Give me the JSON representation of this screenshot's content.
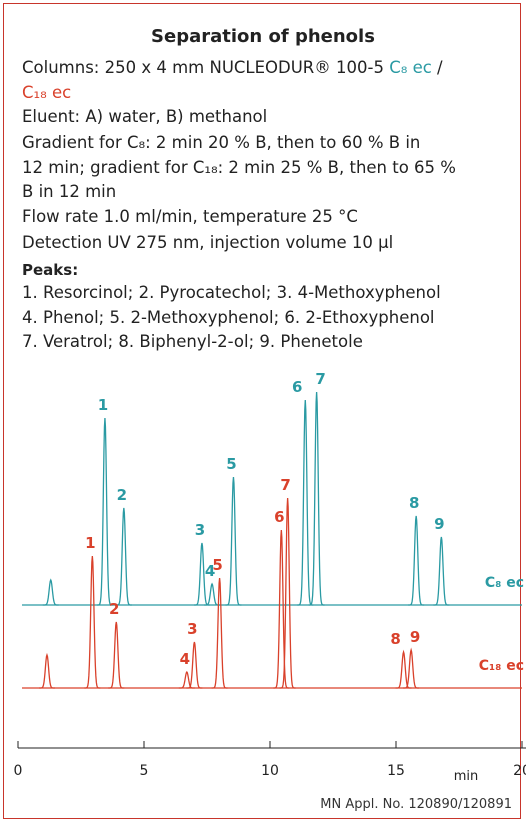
{
  "title": "Separation of phenols",
  "columns_line": [
    "Columns: 250 x 4 mm NUCLEODUR® 100-5 ",
    "C₈ ec",
    " /"
  ],
  "columns_line2": "C₁₈ ec",
  "conditions": [
    "Eluent: A) water, B) methanol",
    "Gradient for C₈: 2 min 20 % B, then to 60 % B in",
    "12 min; gradient for C₁₈: 2 min 25 % B, then to 65 %",
    "B in 12 min",
    "Flow rate 1.0 ml/min, temperature 25 °C",
    "Detection UV 275 nm, injection volume 10 µl"
  ],
  "peaks_heading": "Peaks:",
  "peaks_lines": [
    "1. Resorcinol; 2. Pyrocatechol; 3. 4-Methoxyphenol",
    "4. Phenol; 5. 2-Methoxyphenol; 6. 2-Ethoxyphenol",
    "7. Veratrol; 8. Biphenyl-2-ol; 9. Phenetole"
  ],
  "chart_data": {
    "type": "chromatogram",
    "xlabel": "min",
    "xlim": [
      0,
      20
    ],
    "xticks": [
      0,
      5,
      10,
      15,
      20
    ],
    "ylim": [
      0,
      250
    ],
    "series": [
      {
        "name": "C₈ ec",
        "color": "#2a9aa3",
        "x": [
          1.3,
          3.45,
          4.2,
          7.3,
          7.7,
          8.55,
          11.4,
          11.85,
          15.8,
          16.8
        ],
        "values": [
          25,
          187,
          97,
          62,
          21,
          128,
          205,
          213,
          89,
          68
        ],
        "labels": [
          null,
          "1",
          "2",
          "3",
          "4",
          "5",
          "6",
          "7",
          "8",
          "9"
        ]
      },
      {
        "name": "C₁₈ ec",
        "color": "#d9412b",
        "x": [
          1.15,
          2.95,
          3.9,
          6.7,
          7.0,
          8.0,
          10.45,
          10.7,
          15.3,
          15.6
        ],
        "values": [
          33,
          132,
          66,
          16,
          46,
          110,
          158,
          190,
          36,
          38
        ],
        "labels": [
          null,
          "1",
          "2",
          "4",
          "3",
          "5",
          "6",
          "7",
          "8",
          "9"
        ]
      }
    ]
  },
  "footer": "MN Appl. No. 120890/120891"
}
